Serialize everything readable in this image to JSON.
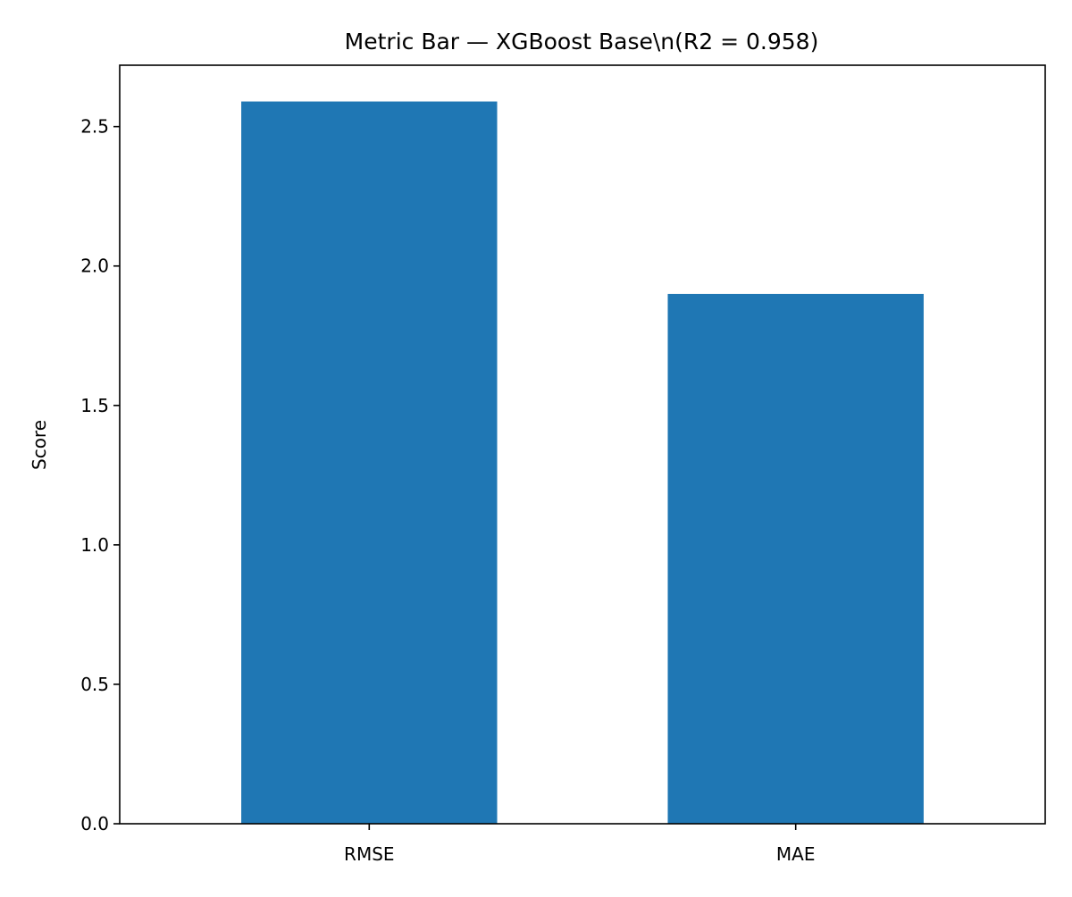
{
  "chart_data": {
    "type": "bar",
    "title": "Metric Bar — XGBoost Base\\n(R2 = 0.958)",
    "xlabel": "",
    "ylabel": "Score",
    "categories": [
      "RMSE",
      "MAE"
    ],
    "values": [
      2.59,
      1.9
    ],
    "ylim": [
      0,
      2.72
    ],
    "yticks": [
      0.0,
      0.5,
      1.0,
      1.5,
      2.0,
      2.5
    ],
    "ytick_labels": [
      "0.0",
      "0.5",
      "1.0",
      "1.5",
      "2.0",
      "2.5"
    ],
    "bar_color": "#1f77b4",
    "grid": false,
    "legend": "none"
  }
}
